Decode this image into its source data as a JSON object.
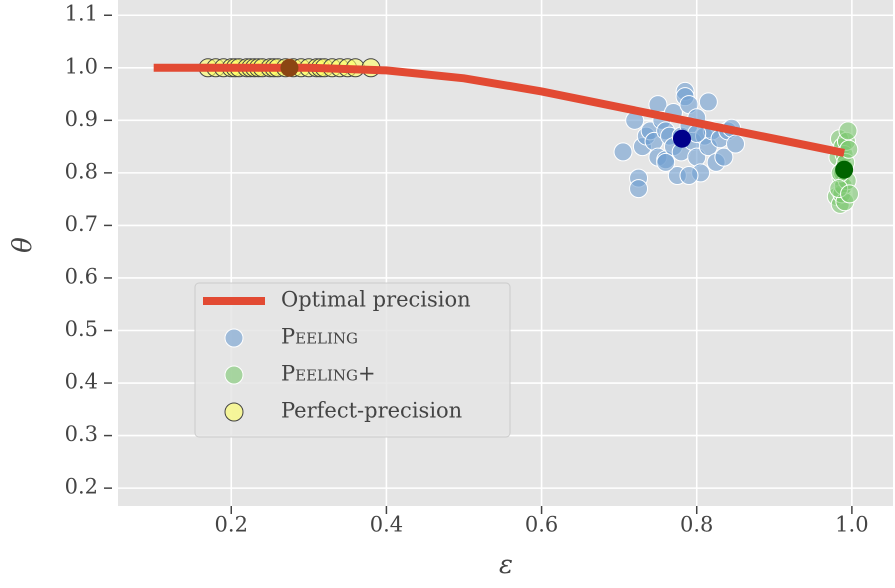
{
  "chart_data": {
    "type": "scatter",
    "x_label": "ε",
    "y_label": "θ",
    "xlim": [
      0.054,
      1.053
    ],
    "ylim": [
      0.166,
      1.129
    ],
    "xticks": [
      0.2,
      0.4,
      0.6,
      0.8,
      {
        "value": 1.0,
        "label": "1.0"
      }
    ],
    "yticks": [
      0.2,
      0.3,
      0.4,
      0.5,
      0.6,
      0.7,
      0.8,
      0.9,
      {
        "value": 1.0,
        "label": "1.0"
      },
      1.1
    ],
    "grid": true,
    "legend_position": "lower left",
    "series": [
      {
        "name": "Optimal precision",
        "mode": "line",
        "color": "#e24a33",
        "x": [
          0.1,
          0.2,
          0.3,
          0.4,
          0.5,
          0.6,
          0.7,
          0.8,
          0.9,
          0.99
        ],
        "y": [
          1.0,
          1.0,
          1.0,
          0.995,
          0.98,
          0.955,
          0.925,
          0.895,
          0.865,
          0.838
        ]
      },
      {
        "name": "Peeling",
        "mode": "markers",
        "color": "#6f9fd0",
        "edge": "#ffffff",
        "x": [
          0.705,
          0.72,
          0.725,
          0.725,
          0.73,
          0.735,
          0.74,
          0.745,
          0.75,
          0.75,
          0.755,
          0.76,
          0.76,
          0.765,
          0.77,
          0.77,
          0.775,
          0.78,
          0.78,
          0.785,
          0.785,
          0.79,
          0.79,
          0.795,
          0.8,
          0.8,
          0.805,
          0.81,
          0.815,
          0.815,
          0.82,
          0.825,
          0.83,
          0.835,
          0.84,
          0.845,
          0.85,
          0.79,
          0.76,
          0.8
        ],
        "y": [
          0.84,
          0.9,
          0.79,
          0.77,
          0.85,
          0.87,
          0.88,
          0.86,
          0.93,
          0.83,
          0.9,
          0.825,
          0.88,
          0.87,
          0.85,
          0.915,
          0.795,
          0.87,
          0.84,
          0.955,
          0.945,
          0.93,
          0.89,
          0.86,
          0.905,
          0.83,
          0.8,
          0.87,
          0.935,
          0.85,
          0.88,
          0.82,
          0.865,
          0.83,
          0.88,
          0.885,
          0.855,
          0.795,
          0.82,
          0.875
        ],
        "mean": {
          "x": 0.781,
          "y": 0.865,
          "color": "#00008b"
        }
      },
      {
        "name": "Peeling+",
        "mode": "markers",
        "color": "#7cc870",
        "edge": "#ffffff",
        "x": [
          0.98,
          0.982,
          0.984,
          0.985,
          0.986,
          0.987,
          0.988,
          0.988,
          0.989,
          0.99,
          0.99,
          0.991,
          0.992,
          0.993,
          0.994,
          0.995,
          0.996,
          0.985,
          0.983,
          0.997
        ],
        "y": [
          0.755,
          0.83,
          0.865,
          0.74,
          0.79,
          0.76,
          0.8,
          0.85,
          0.775,
          0.81,
          0.835,
          0.745,
          0.82,
          0.86,
          0.785,
          0.88,
          0.845,
          0.8,
          0.77,
          0.76
        ],
        "mean": {
          "x": 0.99,
          "y": 0.806,
          "color": "#006400"
        }
      },
      {
        "name": "Perfect-precision",
        "mode": "markers",
        "color": "#ffff66",
        "edge": "#444444",
        "x": [
          0.17,
          0.18,
          0.19,
          0.2,
          0.205,
          0.21,
          0.22,
          0.225,
          0.23,
          0.235,
          0.24,
          0.25,
          0.255,
          0.26,
          0.27,
          0.28,
          0.29,
          0.3,
          0.31,
          0.315,
          0.32,
          0.33,
          0.34,
          0.35,
          0.36,
          0.38
        ],
        "y": [
          1.0,
          1.0,
          1.0,
          1.0,
          1.0,
          1.0,
          1.0,
          1.0,
          1.0,
          1.0,
          1.0,
          1.0,
          1.0,
          1.0,
          1.0,
          1.0,
          1.0,
          1.0,
          1.0,
          1.0,
          1.0,
          1.0,
          1.0,
          1.0,
          1.0,
          1.0
        ],
        "mean": {
          "x": 0.275,
          "y": 1.0,
          "color": "#8b4513"
        }
      }
    ]
  }
}
